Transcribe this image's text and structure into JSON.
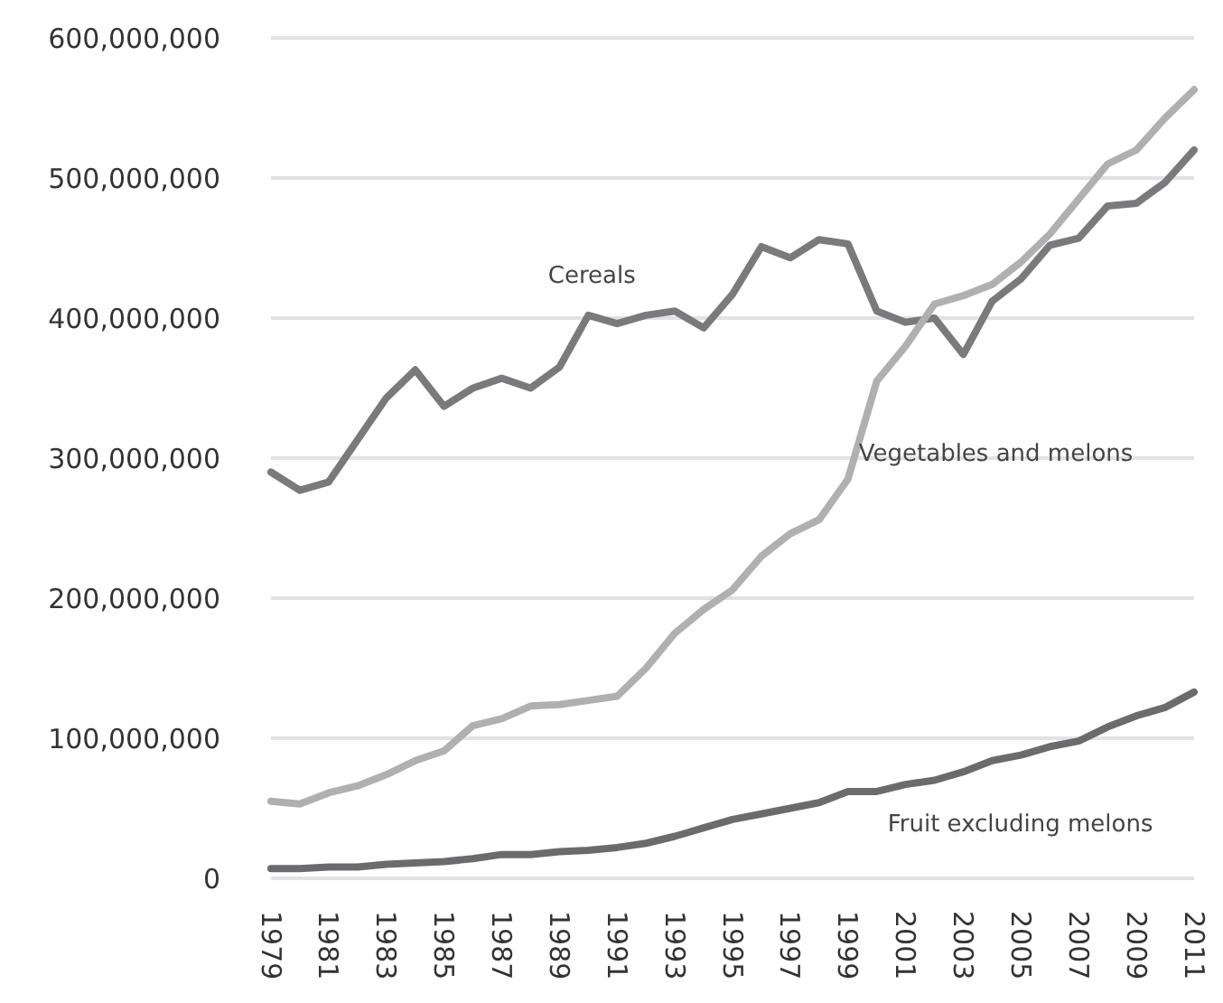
{
  "chart_data": {
    "type": "line",
    "x": [
      1979,
      1980,
      1981,
      1982,
      1983,
      1984,
      1985,
      1986,
      1987,
      1988,
      1989,
      1990,
      1991,
      1992,
      1993,
      1994,
      1995,
      1996,
      1997,
      1998,
      1999,
      2000,
      2001,
      2002,
      2003,
      2004,
      2005,
      2006,
      2007,
      2008,
      2009,
      2010,
      2011
    ],
    "series": [
      {
        "name": "Cereals",
        "color": "#7a7a7c",
        "values": [
          290000000,
          277000000,
          283000000,
          313000000,
          343000000,
          363000000,
          337000000,
          350000000,
          357000000,
          350000000,
          365000000,
          402000000,
          396000000,
          402000000,
          405000000,
          393000000,
          417000000,
          451000000,
          443000000,
          456000000,
          453000000,
          405000000,
          397000000,
          400000000,
          374000000,
          412000000,
          428000000,
          452000000,
          457000000,
          480000000,
          482000000,
          497000000,
          520000000
        ]
      },
      {
        "name": "Vegetables and melons",
        "color": "#b0b0b2",
        "values": [
          55000000,
          53000000,
          61000000,
          66000000,
          74000000,
          84000000,
          91000000,
          109000000,
          114000000,
          123000000,
          124000000,
          127000000,
          130000000,
          150000000,
          175000000,
          192000000,
          206000000,
          230000000,
          246000000,
          256000000,
          285000000,
          355000000,
          380000000,
          410000000,
          416000000,
          424000000,
          440000000,
          460000000,
          485000000,
          510000000,
          520000000,
          543000000,
          563000000
        ]
      },
      {
        "name": "Fruit excluding melons",
        "color": "#6b6b6d",
        "values": [
          7000000,
          7000000,
          8000000,
          8000000,
          10000000,
          11000000,
          12000000,
          14000000,
          17000000,
          17000000,
          19000000,
          20000000,
          22000000,
          25000000,
          30000000,
          36000000,
          42000000,
          46000000,
          50000000,
          54000000,
          62000000,
          62000000,
          67000000,
          70000000,
          76000000,
          84000000,
          88000000,
          94000000,
          98000000,
          108000000,
          116000000,
          122000000,
          133000000
        ]
      }
    ],
    "xlim": [
      1979,
      2011
    ],
    "xticks": [
      1979,
      1981,
      1983,
      1985,
      1987,
      1989,
      1991,
      1993,
      1995,
      1997,
      1999,
      2001,
      2003,
      2005,
      2007,
      2009,
      2011
    ],
    "ylim": [
      0,
      600000000
    ],
    "yticks": [
      0,
      {
        "value": 100000000,
        "label": "100,000,000"
      },
      {
        "value": 200000000,
        "label": "200,000,000"
      },
      {
        "value": 300000000,
        "label": "300,000,000"
      },
      {
        "value": 400000000,
        "label": "400,000,000"
      },
      {
        "value": 500000000,
        "label": "500,000,000"
      },
      {
        "value": 600000000,
        "label": "600,000,000"
      }
    ],
    "grid": "y",
    "legend": false,
    "line_style": "solid",
    "marker": "none"
  }
}
